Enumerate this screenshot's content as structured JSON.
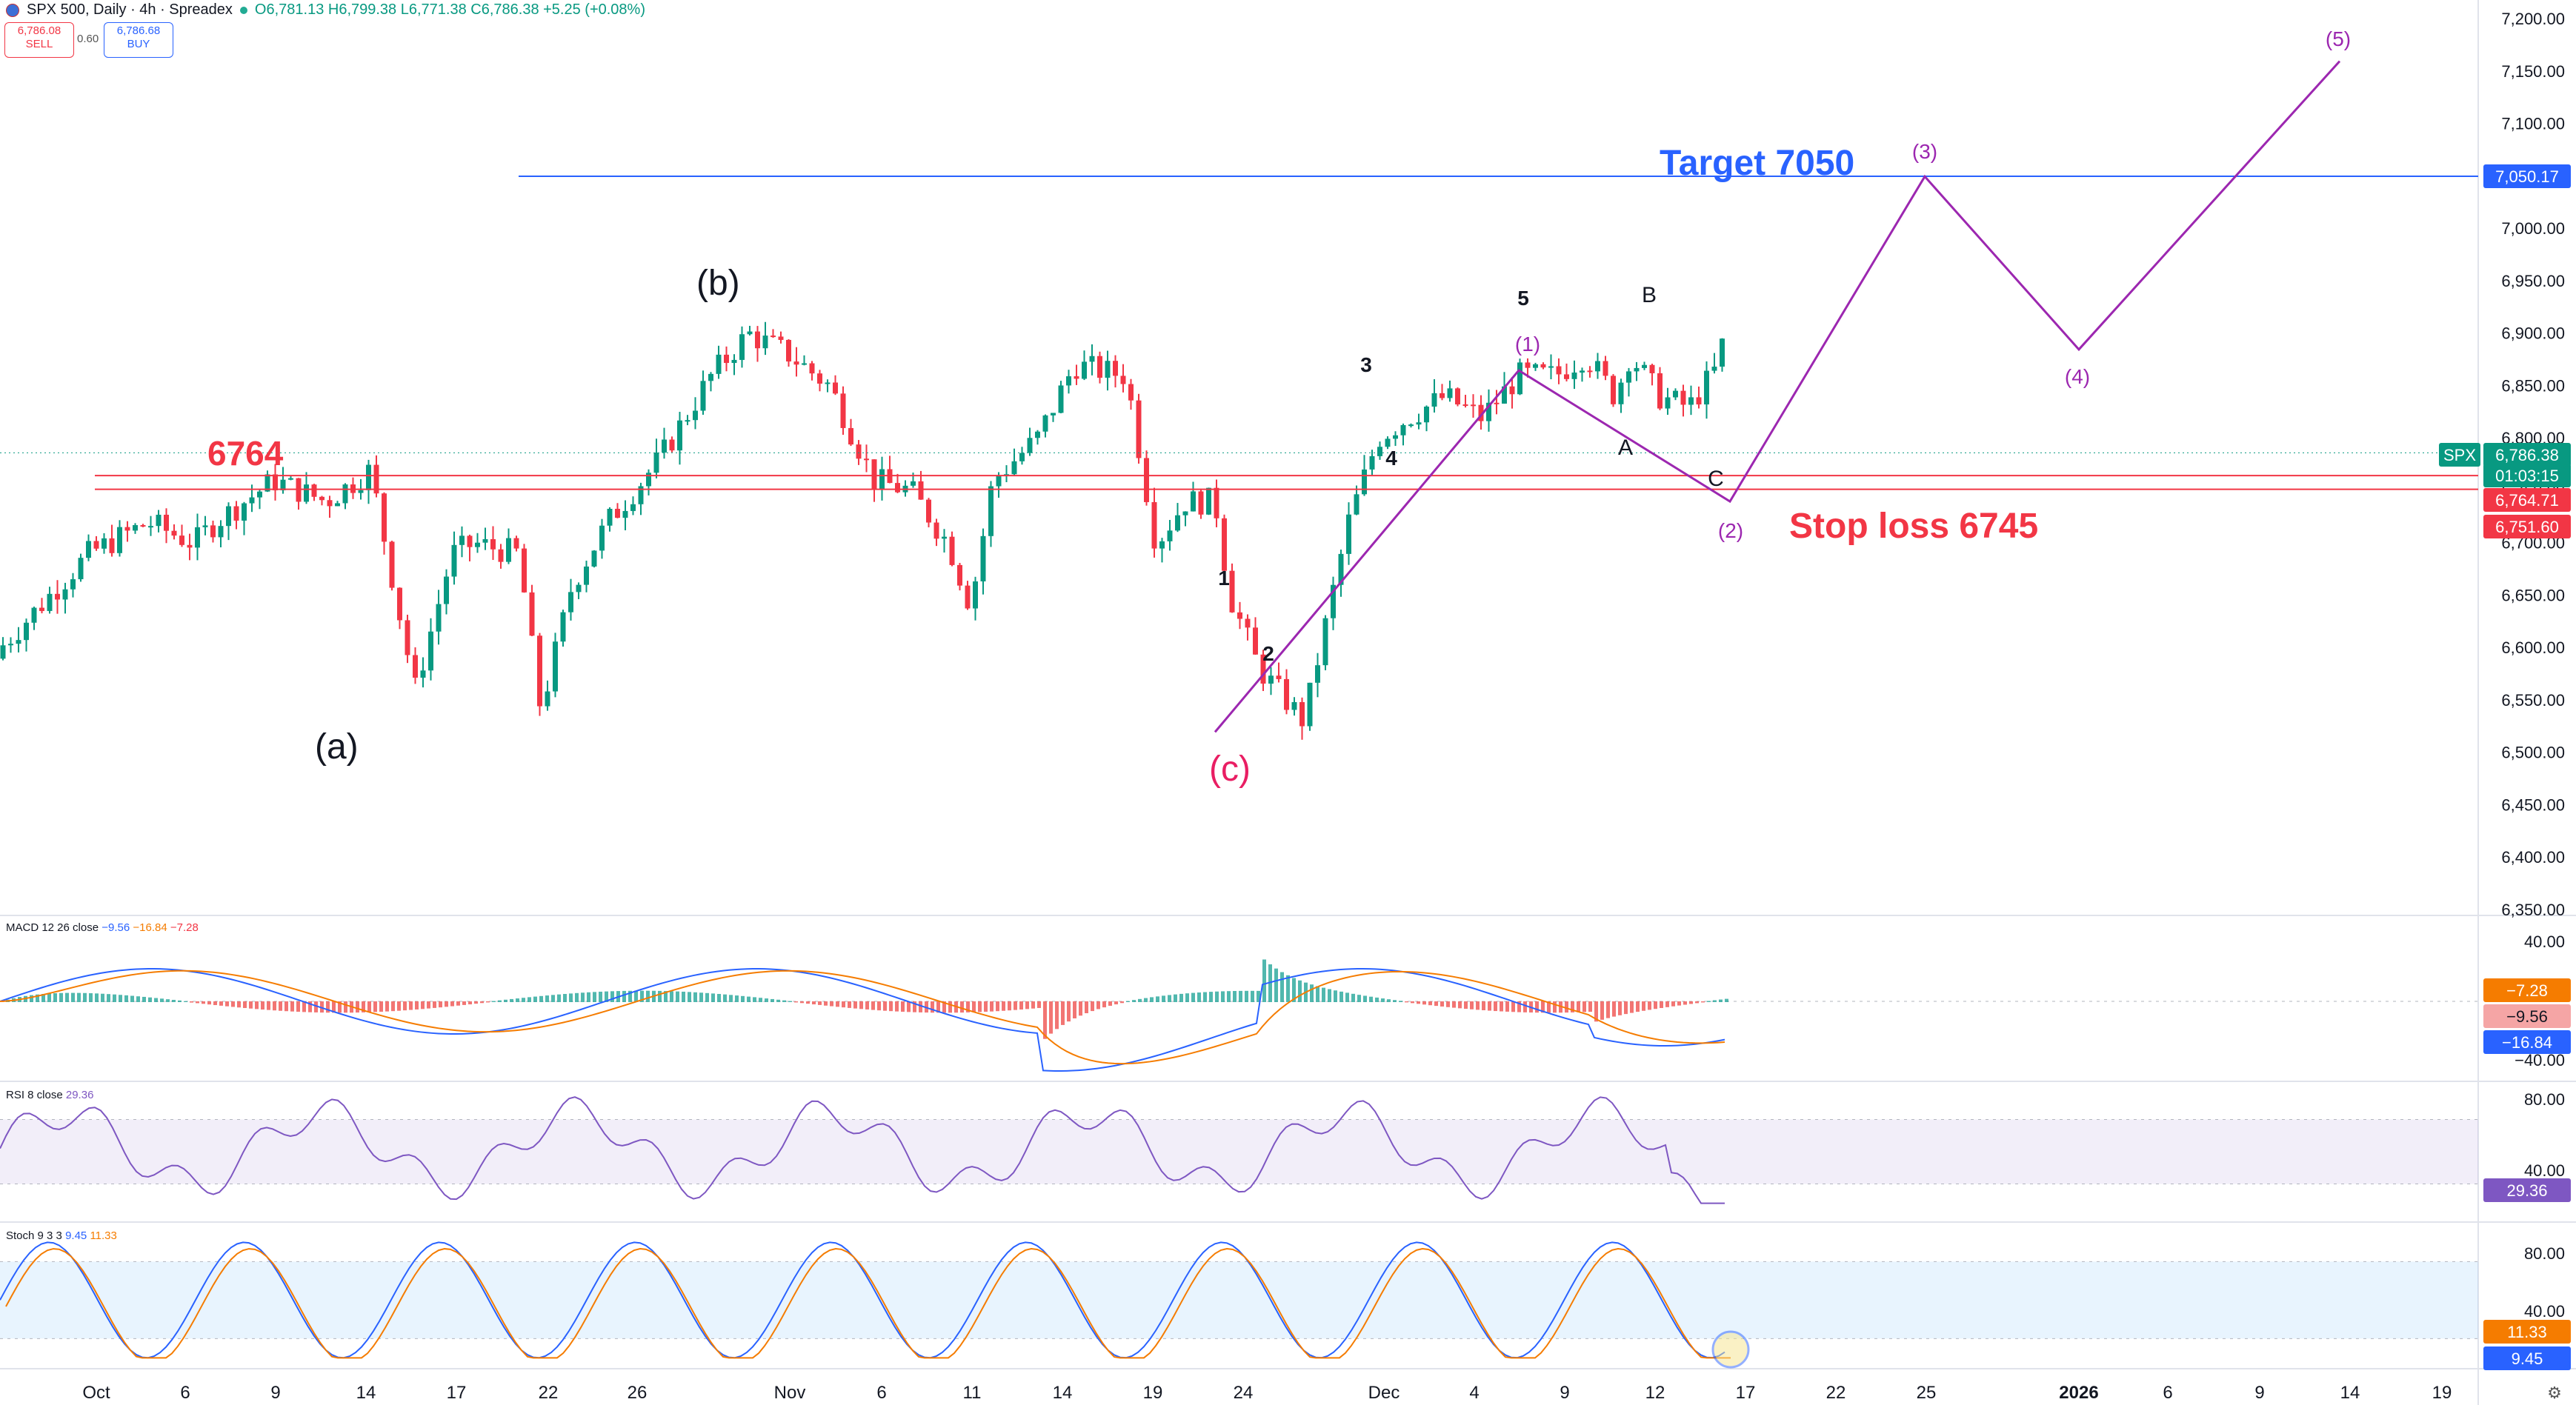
{
  "header": {
    "symbol": "SPX 500, Daily · 4h · Spreadex",
    "ohlc": "O6,781.13 H6,799.38 L6,771.38 C6,786.38 +5.25 (+0.08%)",
    "sell_price": "6,786.08",
    "sell_label": "SELL",
    "spread": "0.60",
    "buy_price": "6,786.68",
    "buy_label": "BUY"
  },
  "price_axis": {
    "ticks": [
      "7,200.00",
      "7,150.00",
      "7,100.00",
      "7,050.00",
      "7,000.00",
      "6,950.00",
      "6,900.00",
      "6,850.00",
      "6,800.00",
      "6,750.00",
      "6,700.00",
      "6,650.00",
      "6,600.00",
      "6,550.00",
      "6,500.00",
      "6,450.00",
      "6,400.00",
      "6,350.00"
    ],
    "badges": [
      {
        "text": "7,050.17",
        "color": "#2962ff"
      },
      {
        "text": "SPX",
        "color": "#089981"
      },
      {
        "text": "6,786.38",
        "color": "#089981"
      },
      {
        "text": "01:03:15",
        "color": "#089981"
      },
      {
        "text": "6,764.71",
        "color": "#f23645"
      },
      {
        "text": "6,751.60",
        "color": "#f23645"
      }
    ]
  },
  "time_axis": {
    "labels": [
      "Oct",
      "6",
      "9",
      "14",
      "17",
      "22",
      "26",
      "Nov",
      "6",
      "11",
      "14",
      "19",
      "24",
      "Dec",
      "4",
      "9",
      "12",
      "17",
      "22",
      "25",
      "2026",
      "6",
      "9",
      "14",
      "19"
    ]
  },
  "annotations": {
    "target": "Target 7050",
    "stop": "Stop loss 6745",
    "level": "6764",
    "wave_a": "(a)",
    "wave_b": "(b)",
    "wave_c": "(c)",
    "impulse": [
      "1",
      "2",
      "3",
      "4",
      "5"
    ],
    "abc": [
      "A",
      "B",
      "C"
    ],
    "projection": [
      "(1)",
      "(2)",
      "(3)",
      "(4)",
      "(5)"
    ]
  },
  "macd": {
    "title": "MACD 12 26 close",
    "v1": "−9.56",
    "v2": "−16.84",
    "v3": "−7.28",
    "ticks": [
      "40.00",
      "−40.00"
    ],
    "badges": [
      {
        "text": "−7.28",
        "color": "#f57c00"
      },
      {
        "text": "−9.56",
        "color": "#f5a5a5"
      },
      {
        "text": "−16.84",
        "color": "#2962ff"
      }
    ]
  },
  "rsi": {
    "title": "RSI 8 close",
    "value": "29.36",
    "ticks": [
      "80.00",
      "40.00"
    ],
    "badge": {
      "text": "29.36",
      "color": "#7e57c2"
    }
  },
  "stoch": {
    "title": "Stoch 9 3 3",
    "k": "9.45",
    "d": "11.33",
    "ticks": [
      "80.00",
      "40.00"
    ],
    "badges": [
      {
        "text": "11.33",
        "color": "#f57c00"
      },
      {
        "text": "9.45",
        "color": "#2962ff"
      }
    ]
  },
  "chart_data": {
    "type": "candlestick",
    "title": "SPX 500, Daily · 4h · Spreadex",
    "xlabel": "",
    "ylabel": "",
    "ylim": [
      6350,
      7200
    ],
    "x": [
      "Sep 30",
      "Oct 6",
      "Oct 9",
      "Oct 14",
      "Oct 17",
      "Oct 22",
      "Oct 26",
      "Oct 31",
      "Nov 6",
      "Nov 11",
      "Nov 14",
      "Nov 19",
      "Nov 21",
      "Nov 24",
      "Dec 1",
      "Dec 4",
      "Dec 9",
      "Dec 12",
      "Dec 15"
    ],
    "close": [
      6600,
      6690,
      6720,
      6650,
      6560,
      6720,
      6860,
      6810,
      6720,
      6860,
      6720,
      6600,
      6530,
      6760,
      6840,
      6860,
      6845,
      6900,
      6786.38
    ],
    "levels": {
      "target": 7050.17,
      "resistance": 6764.71,
      "stop": 6751.6
    },
    "projection": {
      "x": [
        "Nov 21",
        "Dec 5",
        "Dec 15",
        "Dec 25",
        "Jan 1",
        "Jan 13"
      ],
      "y": [
        6520,
        6865,
        6740,
        7050,
        6885,
        7160
      ]
    }
  }
}
